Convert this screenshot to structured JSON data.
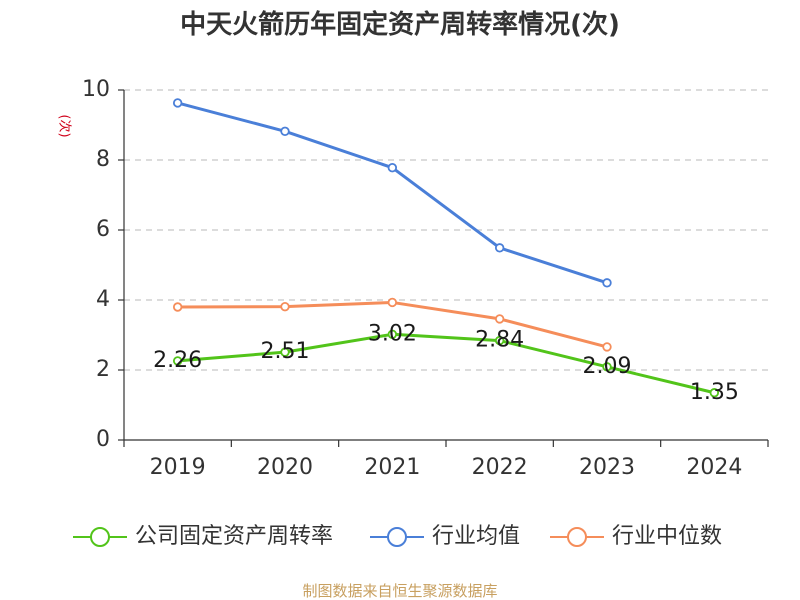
{
  "chart_data": {
    "type": "line",
    "title": "中天火箭历年固定资产周转率情况(次)",
    "ylabel": "(次)",
    "xlabel": "",
    "categories": [
      "2019",
      "2020",
      "2021",
      "2022",
      "2023",
      "2024"
    ],
    "ylim": [
      0,
      10
    ],
    "yticks": [
      0,
      2,
      4,
      6,
      8,
      10
    ],
    "grid": true,
    "legend_position": "bottom",
    "series": [
      {
        "name": "公司固定资产周转率",
        "color": "#52c41a",
        "values": [
          2.26,
          2.51,
          3.02,
          2.84,
          2.09,
          1.35
        ],
        "labels": [
          "2.26",
          "2.51",
          "3.02",
          "2.84",
          "2.09",
          "1.35"
        ],
        "show_labels": true
      },
      {
        "name": "行业均值",
        "color": "#4a7fd8",
        "values": [
          9.63,
          8.82,
          7.78,
          5.49,
          4.49,
          null
        ],
        "show_labels": false
      },
      {
        "name": "行业中位数",
        "color": "#f58d5a",
        "values": [
          3.8,
          3.81,
          3.93,
          3.46,
          2.66,
          null
        ],
        "show_labels": false
      }
    ],
    "source": "制图数据来自恒生聚源数据库",
    "colors": {
      "ylabel": "#d0021b",
      "source": "#c8a060",
      "axis": "#333333",
      "grid": "#c8c8c8"
    }
  }
}
